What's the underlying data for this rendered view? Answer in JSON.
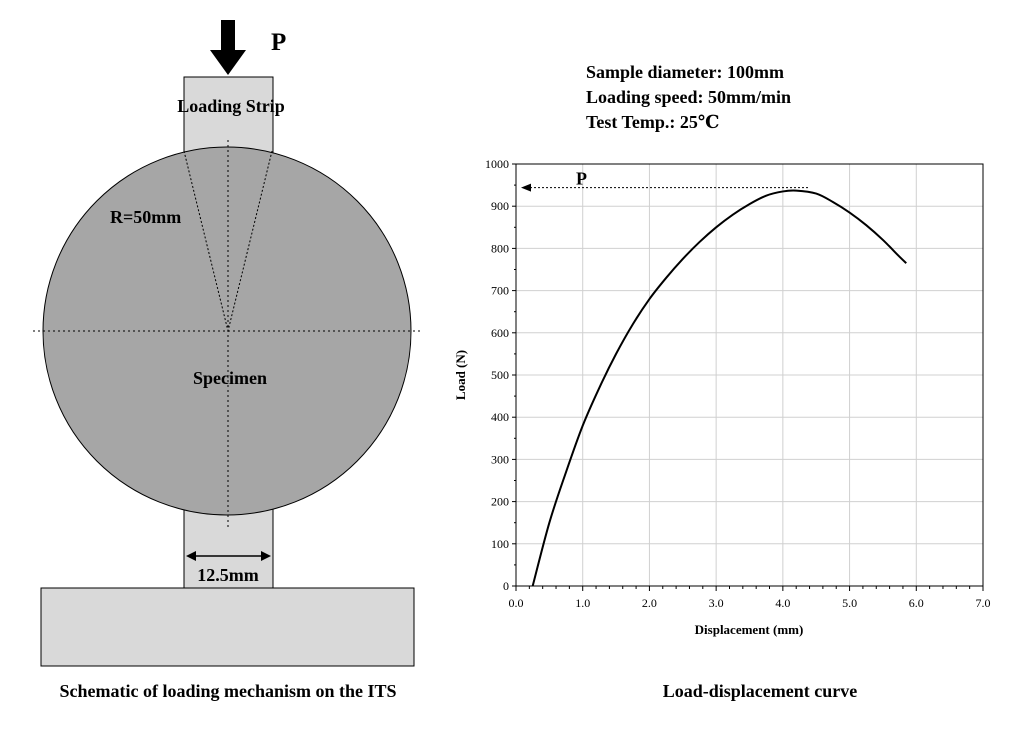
{
  "schematic": {
    "load_symbol": "P",
    "loading_strip_label": "Loading Strip",
    "radius_label": "R=50mm",
    "specimen_label": "Specimen",
    "width_label": "12.5mm",
    "caption": "Schematic of loading mechanism on the ITS",
    "colors": {
      "specimen": "#a6a6a6",
      "strip": "#d9d9d9",
      "base": "#d9d9d9",
      "arrow": "#000000"
    }
  },
  "test_info": {
    "line1": "Sample diameter: 100mm",
    "line2": "Loading speed: 50mm/min",
    "line3": "Test Temp.: 25℃"
  },
  "chart_data": {
    "type": "line",
    "caption": "Load-displacement curve",
    "xlabel": "Displacement (mm)",
    "ylabel": "Load (N)",
    "xlim": [
      0,
      7
    ],
    "ylim": [
      0,
      1000
    ],
    "x_ticks": [
      "0.0",
      "1.0",
      "2.0",
      "3.0",
      "4.0",
      "5.0",
      "6.0",
      "7.0"
    ],
    "y_ticks": [
      "0",
      "100",
      "200",
      "300",
      "400",
      "500",
      "600",
      "700",
      "800",
      "900",
      "1000"
    ],
    "grid": true,
    "peak_label": "P",
    "peak_load": 937,
    "series": [
      {
        "x": [
          0.25,
          0.5,
          0.75,
          1.0,
          1.25,
          1.5,
          1.75,
          2.0,
          2.25,
          2.5,
          2.75,
          3.0,
          3.25,
          3.5,
          3.75,
          4.0,
          4.2,
          4.5,
          4.75,
          5.0,
          5.25,
          5.5,
          5.75,
          5.85
        ],
        "y": [
          0,
          150,
          270,
          380,
          470,
          550,
          620,
          680,
          730,
          775,
          815,
          850,
          880,
          905,
          925,
          935,
          937,
          930,
          910,
          885,
          855,
          820,
          780,
          765
        ]
      }
    ]
  }
}
